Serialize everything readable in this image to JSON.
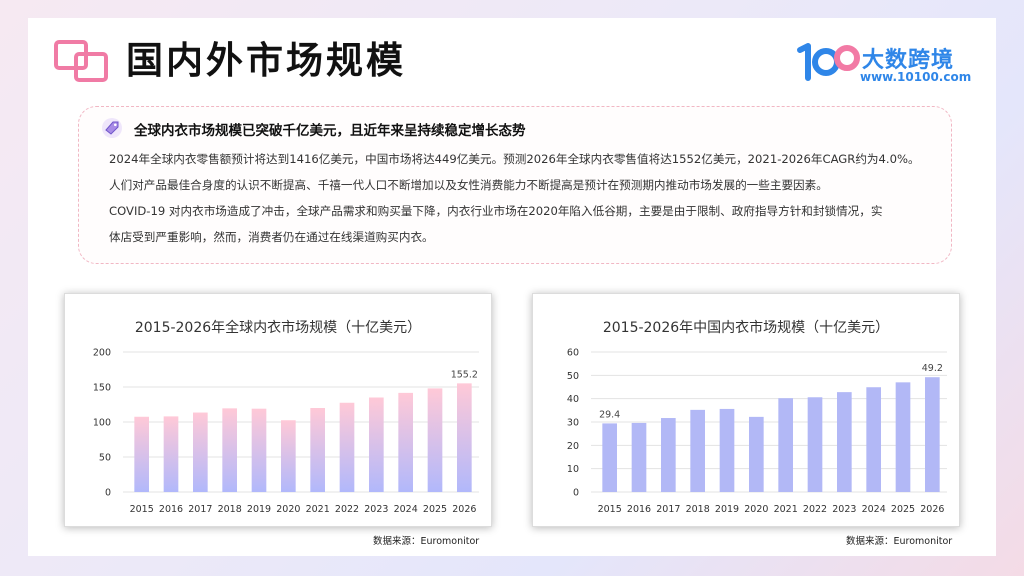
{
  "page": {
    "title": "国内外市场规模"
  },
  "brand": {
    "name": "大数跨境",
    "url": "www.10100.com",
    "primary_color": "#2f86e8",
    "accent_color": "#f27aa5"
  },
  "info": {
    "heading": "全球内衣市场规模已突破千亿美元，且近年来呈持续稳定增长态势",
    "paragraphs": [
      "2024年全球内衣零售额预计将达到1416亿美元，中国市场将达449亿美元。预测2026年全球内衣零售值将达1552亿美元，2021-2026年CAGR约为4.0%。",
      "人们对产品最佳合身度的认识不断提高、千禧一代人口不断增加以及女性消费能力不断提高是预计在预测期内推动市场发展的一些主要因素。",
      "COVID-19 对内衣市场造成了冲击，全球产品需求和购买量下降，内衣行业市场在2020年陷入低谷期，主要是由于限制、政府指导方针和封锁情况，实",
      "体店受到严重影响，然而，消费者仍在通过在线渠道购买内衣。"
    ]
  },
  "chart_data": [
    {
      "type": "bar",
      "title": "2015-2026年全球内衣市场规模（十亿美元）",
      "categories": [
        "2015",
        "2016",
        "2017",
        "2018",
        "2019",
        "2020",
        "2021",
        "2022",
        "2023",
        "2024",
        "2025",
        "2026"
      ],
      "values": [
        107.5,
        108.0,
        113.5,
        119.5,
        119.0,
        102.5,
        120.0,
        127.5,
        135.0,
        141.6,
        148.0,
        155.2
      ],
      "ylim": [
        0,
        200
      ],
      "yticks": [
        0,
        50,
        100,
        150,
        200
      ],
      "data_labels": {
        "2026": "155.2"
      },
      "grid": true,
      "bar_color_top": "#ffc9d7",
      "bar_color_bottom": "#b1b8fb",
      "source": "数据来源：Euromonitor"
    },
    {
      "type": "bar",
      "title": "2015-2026年中国内衣市场规模（十亿美元）",
      "categories": [
        "2015",
        "2016",
        "2017",
        "2018",
        "2019",
        "2020",
        "2021",
        "2022",
        "2023",
        "2024",
        "2025",
        "2026"
      ],
      "values": [
        29.4,
        29.6,
        31.7,
        35.2,
        35.6,
        32.2,
        40.2,
        40.6,
        42.8,
        44.9,
        47.0,
        49.2
      ],
      "ylim": [
        0,
        60
      ],
      "yticks": [
        0,
        10,
        20,
        30,
        40,
        50,
        60
      ],
      "data_labels": {
        "2015": "29.4",
        "2026": "49.2"
      },
      "grid": true,
      "bar_color": "#b2b8f6",
      "source": "数据来源：Euromonitor"
    }
  ]
}
